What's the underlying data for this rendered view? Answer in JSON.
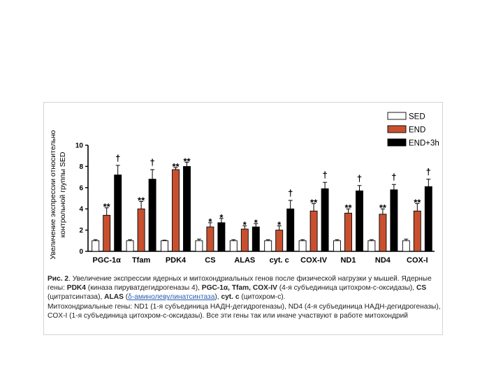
{
  "chart_data": {
    "type": "bar",
    "ylabel_lines": [
      "Увеличение экспрессии относительно",
      "контрольной группы SED"
    ],
    "ylim": [
      0,
      10
    ],
    "yticks": [
      "0",
      "2",
      "4",
      "6",
      "8",
      "10"
    ],
    "categories": [
      "PGC-1α",
      "Tfam",
      "PDK4",
      "CS",
      "ALAS",
      "cyt. c",
      "COX-IV",
      "ND1",
      "ND4",
      "COX-I"
    ],
    "legend_position": "top-right",
    "series": [
      {
        "name": "SED",
        "color": "#ffffff",
        "values": [
          1,
          1,
          1,
          1,
          1,
          1,
          1,
          1,
          1,
          1
        ],
        "errors": [
          0.1,
          0.1,
          0.05,
          0.15,
          0.1,
          0.1,
          0.1,
          0.1,
          0.1,
          0.15
        ]
      },
      {
        "name": "END",
        "color": "#c8502f",
        "values": [
          3.4,
          4.0,
          7.7,
          2.3,
          2.1,
          2.0,
          3.8,
          3.6,
          3.5,
          3.8
        ],
        "errors": [
          0.7,
          0.7,
          0.2,
          0.4,
          0.3,
          0.4,
          0.7,
          0.4,
          0.5,
          0.7
        ]
      },
      {
        "name": "END+3h",
        "color": "#000000",
        "values": [
          7.2,
          6.8,
          8.0,
          2.7,
          2.3,
          4.0,
          5.9,
          5.7,
          5.8,
          6.1
        ],
        "errors": [
          0.9,
          0.9,
          0.4,
          0.4,
          0.3,
          0.8,
          0.6,
          0.5,
          0.5,
          0.7
        ]
      }
    ],
    "annotations": [
      {
        "category": 0,
        "series": 1,
        "text": "**"
      },
      {
        "category": 0,
        "series": 2,
        "text": "†"
      },
      {
        "category": 1,
        "series": 1,
        "text": "**"
      },
      {
        "category": 1,
        "series": 2,
        "text": "†"
      },
      {
        "category": 2,
        "series": 1,
        "text": "**"
      },
      {
        "category": 2,
        "series": 2,
        "text": "**"
      },
      {
        "category": 3,
        "series": 1,
        "text": "*"
      },
      {
        "category": 3,
        "series": 2,
        "text": "*"
      },
      {
        "category": 4,
        "series": 1,
        "text": "*"
      },
      {
        "category": 4,
        "series": 2,
        "text": "*"
      },
      {
        "category": 5,
        "series": 1,
        "text": "*"
      },
      {
        "category": 5,
        "series": 2,
        "text": "†"
      },
      {
        "category": 6,
        "series": 1,
        "text": "**"
      },
      {
        "category": 6,
        "series": 2,
        "text": "†"
      },
      {
        "category": 7,
        "series": 1,
        "text": "**"
      },
      {
        "category": 7,
        "series": 2,
        "text": "†"
      },
      {
        "category": 8,
        "series": 1,
        "text": "**"
      },
      {
        "category": 8,
        "series": 2,
        "text": "†"
      },
      {
        "category": 9,
        "series": 1,
        "text": "**"
      },
      {
        "category": 9,
        "series": 2,
        "text": "†"
      }
    ]
  },
  "caption": {
    "fig_label": "Рис. 2",
    "p1": ". Увеличение экспрессии ядерных и митохондриальных генов после физической нагрузки у мышей. Ядерные гены: ",
    "pdk4": "PDK4",
    "p2": " (киназа пируватдегидрогеназы 4), ",
    "genes1": "PGC-1α, Tfam, COX-IV",
    "p3": " (4-я субъединица цитохром-с-оксидазы), ",
    "cs": "CS",
    "p4": " (цитратсинтаза), ",
    "alas": "ALAS",
    "p5": " (",
    "alas_link": "δ-аминолевулинатсинтаза",
    "p6": "), ",
    "cytc": "cyt. c",
    "p7": " (цитохром-с).",
    "p8": "Митохондриальные гены: ND1 (1-я субъединица НАДН-дегидрогеназы), ND4 (4-я субъединица НАДН-дегидрогеназы), COX-I (1-я субъединица цитохром-с-оксидазы). Все эти гены так или иначе участвуют в работе митохондрий"
  }
}
